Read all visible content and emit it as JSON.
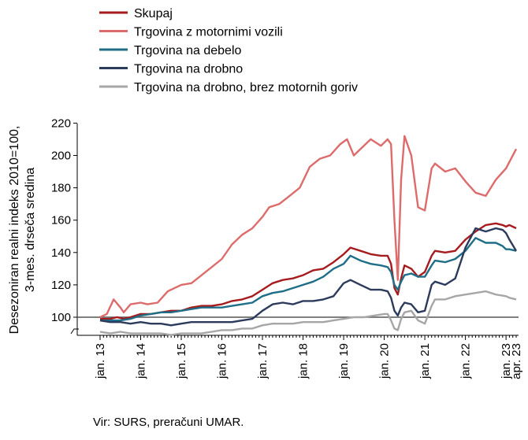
{
  "chart_data": {
    "type": "line",
    "ylabel_lines": [
      "Desezoniran realni indeks 2010=100,",
      "3-mes. drseča sredina"
    ],
    "ylim": [
      90,
      220
    ],
    "yticks": [
      100,
      120,
      140,
      160,
      180,
      200,
      220
    ],
    "x_start": "2013-01",
    "x_end": "2023-04",
    "xtick_labels": [
      {
        "label": "jan. 13",
        "date": "2013-01"
      },
      {
        "label": "jan. 14",
        "date": "2014-01"
      },
      {
        "label": "jan. 15",
        "date": "2015-01"
      },
      {
        "label": "jan. 16",
        "date": "2016-01"
      },
      {
        "label": "jan. 17",
        "date": "2017-01"
      },
      {
        "label": "jan. 18",
        "date": "2018-01"
      },
      {
        "label": "jan. 19",
        "date": "2019-01"
      },
      {
        "label": "jan. 20",
        "date": "2020-01"
      },
      {
        "label": "jan. 21",
        "date": "2021-01"
      },
      {
        "label": "jan. 22",
        "date": "2022-01"
      },
      {
        "label": "jan. 23",
        "date": "2023-01"
      },
      {
        "label": "apr. 23",
        "date": "2023-04"
      }
    ],
    "reference_line": 100,
    "legend_position": "top-left",
    "series": [
      {
        "name": "Skupaj",
        "color": "#a51b1e",
        "points": [
          [
            "2013-01",
            99
          ],
          [
            "2013-04",
            99
          ],
          [
            "2013-06",
            100
          ],
          [
            "2013-08",
            99
          ],
          [
            "2013-10",
            100
          ],
          [
            "2014-01",
            102
          ],
          [
            "2014-04",
            102
          ],
          [
            "2014-07",
            103
          ],
          [
            "2014-10",
            104
          ],
          [
            "2015-01",
            104
          ],
          [
            "2015-04",
            106
          ],
          [
            "2015-07",
            107
          ],
          [
            "2015-10",
            107
          ],
          [
            "2016-01",
            108
          ],
          [
            "2016-04",
            110
          ],
          [
            "2016-07",
            111
          ],
          [
            "2016-10",
            113
          ],
          [
            "2017-01",
            117
          ],
          [
            "2017-04",
            121
          ],
          [
            "2017-07",
            123
          ],
          [
            "2017-10",
            124
          ],
          [
            "2018-01",
            126
          ],
          [
            "2018-04",
            129
          ],
          [
            "2018-07",
            130
          ],
          [
            "2018-10",
            134
          ],
          [
            "2019-01",
            139
          ],
          [
            "2019-03",
            143
          ],
          [
            "2019-06",
            141
          ],
          [
            "2019-09",
            139
          ],
          [
            "2019-12",
            138
          ],
          [
            "2020-02",
            138
          ],
          [
            "2020-03",
            133
          ],
          [
            "2020-04",
            118
          ],
          [
            "2020-05",
            114
          ],
          [
            "2020-06",
            124
          ],
          [
            "2020-07",
            132
          ],
          [
            "2020-09",
            130
          ],
          [
            "2020-11",
            125
          ],
          [
            "2021-01",
            128
          ],
          [
            "2021-03",
            138
          ],
          [
            "2021-04",
            141
          ],
          [
            "2021-07",
            140
          ],
          [
            "2021-10",
            141
          ],
          [
            "2022-01",
            148
          ],
          [
            "2022-04",
            153
          ],
          [
            "2022-07",
            157
          ],
          [
            "2022-10",
            158
          ],
          [
            "2022-12",
            157
          ],
          [
            "2023-01",
            156
          ],
          [
            "2023-02",
            157
          ],
          [
            "2023-04",
            155
          ]
        ]
      },
      {
        "name": "Trgovina z motornimi vozili",
        "color": "#de6b6b",
        "points": [
          [
            "2013-01",
            100
          ],
          [
            "2013-03",
            102
          ],
          [
            "2013-05",
            111
          ],
          [
            "2013-07",
            106
          ],
          [
            "2013-08",
            103
          ],
          [
            "2013-10",
            108
          ],
          [
            "2014-01",
            109
          ],
          [
            "2014-03",
            108
          ],
          [
            "2014-06",
            109
          ],
          [
            "2014-09",
            116
          ],
          [
            "2015-01",
            120
          ],
          [
            "2015-04",
            121
          ],
          [
            "2015-07",
            126
          ],
          [
            "2015-10",
            131
          ],
          [
            "2016-01",
            136
          ],
          [
            "2016-04",
            145
          ],
          [
            "2016-07",
            151
          ],
          [
            "2016-10",
            155
          ],
          [
            "2017-01",
            162
          ],
          [
            "2017-03",
            168
          ],
          [
            "2017-06",
            170
          ],
          [
            "2017-09",
            175
          ],
          [
            "2017-12",
            180
          ],
          [
            "2018-03",
            193
          ],
          [
            "2018-06",
            198
          ],
          [
            "2018-09",
            200
          ],
          [
            "2018-12",
            207
          ],
          [
            "2019-02",
            210
          ],
          [
            "2019-04",
            200
          ],
          [
            "2019-06",
            204
          ],
          [
            "2019-09",
            210
          ],
          [
            "2019-12",
            206
          ],
          [
            "2020-02",
            210
          ],
          [
            "2020-03",
            207
          ],
          [
            "2020-04",
            160
          ],
          [
            "2020-05",
            123
          ],
          [
            "2020-06",
            185
          ],
          [
            "2020-07",
            212
          ],
          [
            "2020-09",
            200
          ],
          [
            "2020-11",
            168
          ],
          [
            "2021-01",
            166
          ],
          [
            "2021-03",
            192
          ],
          [
            "2021-04",
            195
          ],
          [
            "2021-07",
            190
          ],
          [
            "2021-10",
            192
          ],
          [
            "2022-01",
            184
          ],
          [
            "2022-04",
            177
          ],
          [
            "2022-07",
            175
          ],
          [
            "2022-10",
            185
          ],
          [
            "2023-01",
            192
          ],
          [
            "2023-02",
            196
          ],
          [
            "2023-04",
            204
          ]
        ]
      },
      {
        "name": "Trgovina na debelo",
        "color": "#1e6e87",
        "points": [
          [
            "2013-01",
            98
          ],
          [
            "2013-04",
            98
          ],
          [
            "2013-07",
            98
          ],
          [
            "2013-10",
            99
          ],
          [
            "2014-01",
            101
          ],
          [
            "2014-04",
            102
          ],
          [
            "2014-07",
            103
          ],
          [
            "2014-10",
            103
          ],
          [
            "2015-01",
            104
          ],
          [
            "2015-04",
            105
          ],
          [
            "2015-07",
            106
          ],
          [
            "2015-10",
            106
          ],
          [
            "2016-01",
            106
          ],
          [
            "2016-04",
            107
          ],
          [
            "2016-07",
            108
          ],
          [
            "2016-10",
            109
          ],
          [
            "2017-01",
            113
          ],
          [
            "2017-04",
            115
          ],
          [
            "2017-07",
            116
          ],
          [
            "2017-10",
            118
          ],
          [
            "2018-01",
            120
          ],
          [
            "2018-04",
            122
          ],
          [
            "2018-07",
            125
          ],
          [
            "2018-10",
            130
          ],
          [
            "2019-01",
            133
          ],
          [
            "2019-03",
            138
          ],
          [
            "2019-06",
            135
          ],
          [
            "2019-09",
            133
          ],
          [
            "2019-12",
            132
          ],
          [
            "2020-02",
            131
          ],
          [
            "2020-03",
            128
          ],
          [
            "2020-04",
            120
          ],
          [
            "2020-05",
            117
          ],
          [
            "2020-06",
            122
          ],
          [
            "2020-07",
            126
          ],
          [
            "2020-09",
            127
          ],
          [
            "2020-11",
            125
          ],
          [
            "2021-01",
            125
          ],
          [
            "2021-03",
            132
          ],
          [
            "2021-04",
            135
          ],
          [
            "2021-07",
            134
          ],
          [
            "2021-10",
            136
          ],
          [
            "2022-01",
            141
          ],
          [
            "2022-04",
            149
          ],
          [
            "2022-07",
            146
          ],
          [
            "2022-10",
            146
          ],
          [
            "2022-12",
            144
          ],
          [
            "2023-01",
            142
          ],
          [
            "2023-02",
            142
          ],
          [
            "2023-04",
            141
          ]
        ]
      },
      {
        "name": "Trgovina na drobno",
        "color": "#2c3a5c",
        "points": [
          [
            "2013-01",
            98
          ],
          [
            "2013-04",
            97
          ],
          [
            "2013-07",
            97
          ],
          [
            "2013-10",
            96
          ],
          [
            "2014-01",
            97
          ],
          [
            "2014-04",
            96
          ],
          [
            "2014-07",
            96
          ],
          [
            "2014-10",
            95
          ],
          [
            "2015-01",
            96
          ],
          [
            "2015-04",
            97
          ],
          [
            "2015-07",
            97
          ],
          [
            "2015-10",
            97
          ],
          [
            "2016-01",
            97
          ],
          [
            "2016-04",
            97
          ],
          [
            "2016-07",
            98
          ],
          [
            "2016-10",
            99
          ],
          [
            "2017-01",
            104
          ],
          [
            "2017-04",
            108
          ],
          [
            "2017-07",
            109
          ],
          [
            "2017-10",
            108
          ],
          [
            "2018-01",
            110
          ],
          [
            "2018-04",
            110
          ],
          [
            "2018-07",
            111
          ],
          [
            "2018-10",
            113
          ],
          [
            "2019-01",
            121
          ],
          [
            "2019-03",
            123
          ],
          [
            "2019-06",
            120
          ],
          [
            "2019-09",
            117
          ],
          [
            "2019-12",
            117
          ],
          [
            "2020-02",
            116
          ],
          [
            "2020-03",
            112
          ],
          [
            "2020-04",
            104
          ],
          [
            "2020-05",
            101
          ],
          [
            "2020-06",
            106
          ],
          [
            "2020-07",
            109
          ],
          [
            "2020-09",
            108
          ],
          [
            "2020-11",
            103
          ],
          [
            "2021-01",
            104
          ],
          [
            "2021-03",
            120
          ],
          [
            "2021-04",
            122
          ],
          [
            "2021-07",
            120
          ],
          [
            "2021-10",
            124
          ],
          [
            "2022-01",
            143
          ],
          [
            "2022-04",
            155
          ],
          [
            "2022-07",
            153
          ],
          [
            "2022-10",
            155
          ],
          [
            "2022-12",
            154
          ],
          [
            "2023-01",
            152
          ],
          [
            "2023-02",
            148
          ],
          [
            "2023-04",
            141
          ]
        ]
      },
      {
        "name": "Trgovina na drobno, brez motornih goriv",
        "color": "#a6a6a6",
        "points": [
          [
            "2013-01",
            91
          ],
          [
            "2013-04",
            90
          ],
          [
            "2013-07",
            91
          ],
          [
            "2013-10",
            90
          ],
          [
            "2014-01",
            90
          ],
          [
            "2014-04",
            90
          ],
          [
            "2014-07",
            90
          ],
          [
            "2014-10",
            89
          ],
          [
            "2015-01",
            90
          ],
          [
            "2015-04",
            90
          ],
          [
            "2015-07",
            90
          ],
          [
            "2015-10",
            91
          ],
          [
            "2016-01",
            92
          ],
          [
            "2016-04",
            92
          ],
          [
            "2016-07",
            93
          ],
          [
            "2016-10",
            93
          ],
          [
            "2017-01",
            95
          ],
          [
            "2017-04",
            96
          ],
          [
            "2017-07",
            96
          ],
          [
            "2017-10",
            96
          ],
          [
            "2018-01",
            97
          ],
          [
            "2018-04",
            97
          ],
          [
            "2018-07",
            97
          ],
          [
            "2018-10",
            98
          ],
          [
            "2019-01",
            99
          ],
          [
            "2019-04",
            100
          ],
          [
            "2019-07",
            100
          ],
          [
            "2019-10",
            101
          ],
          [
            "2020-01",
            102
          ],
          [
            "2020-02",
            102
          ],
          [
            "2020-03",
            98
          ],
          [
            "2020-04",
            93
          ],
          [
            "2020-05",
            92
          ],
          [
            "2020-06",
            99
          ],
          [
            "2020-07",
            103
          ],
          [
            "2020-09",
            104
          ],
          [
            "2020-11",
            98
          ],
          [
            "2021-01",
            96
          ],
          [
            "2021-03",
            107
          ],
          [
            "2021-04",
            111
          ],
          [
            "2021-07",
            111
          ],
          [
            "2021-10",
            113
          ],
          [
            "2022-01",
            114
          ],
          [
            "2022-04",
            115
          ],
          [
            "2022-07",
            116
          ],
          [
            "2022-10",
            114
          ],
          [
            "2023-01",
            113
          ],
          [
            "2023-02",
            112
          ],
          [
            "2023-04",
            111
          ]
        ]
      }
    ]
  },
  "source": "Vir: SURS, preračuni UMAR."
}
